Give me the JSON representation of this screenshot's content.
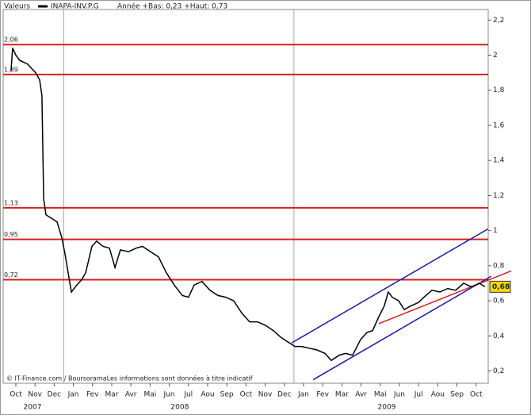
{
  "chart_data": {
    "type": "line",
    "header": "Valeurs",
    "annotation": "Année +Bas: 0,23 +Haut: 0,73",
    "source": "© IT-Finance.com / BoursoramaLes informations sont données à titre indicatif",
    "xlim": [
      -0.66,
      24.63
    ],
    "ylim": [
      0.13,
      2.26
    ],
    "yticks": [
      {
        "value": 0.2,
        "label": "0,2"
      },
      {
        "value": 0.4,
        "label": "0,4"
      },
      {
        "value": 0.6,
        "label": "0,6"
      },
      {
        "value": 0.8,
        "label": "0,8"
      },
      1,
      {
        "value": 1.2,
        "label": "1,2"
      },
      {
        "value": 1.4,
        "label": "1,4"
      },
      {
        "value": 1.6,
        "label": "1,6"
      },
      {
        "value": 1.8,
        "label": "1,8"
      },
      2,
      {
        "value": 2.2,
        "label": "2,2"
      }
    ],
    "xticks": [
      {
        "value": 0,
        "label": "Oct"
      },
      {
        "value": 1,
        "label": "Nov"
      },
      {
        "value": 2,
        "label": "Dec"
      },
      {
        "value": 3,
        "label": "Jan"
      },
      {
        "value": 4,
        "label": "Fev"
      },
      {
        "value": 5,
        "label": "Mar"
      },
      {
        "value": 6,
        "label": "Avr"
      },
      {
        "value": 7,
        "label": "Mai"
      },
      {
        "value": 8,
        "label": "Jun"
      },
      {
        "value": 9,
        "label": "Jul"
      },
      {
        "value": 10,
        "label": "Aou"
      },
      {
        "value": 11,
        "label": "Sep"
      },
      {
        "value": 12,
        "label": "Oct"
      },
      {
        "value": 13,
        "label": "Nov"
      },
      {
        "value": 14,
        "label": "Dec"
      },
      {
        "value": 15,
        "label": "Jan"
      },
      {
        "value": 16,
        "label": "Fev"
      },
      {
        "value": 17,
        "label": "Mar"
      },
      {
        "value": 18,
        "label": "Avr"
      },
      {
        "value": 19,
        "label": "Mai"
      },
      {
        "value": 20,
        "label": "Jun"
      },
      {
        "value": 21,
        "label": "Jul"
      },
      {
        "value": 22,
        "label": "Aou"
      },
      {
        "value": 23,
        "label": "Sep"
      },
      {
        "value": 24,
        "label": "Oct"
      }
    ],
    "years": [
      {
        "value": 0.87,
        "label": "2007"
      },
      {
        "value": 8.55,
        "label": "2008"
      },
      {
        "value": 19.34,
        "label": "2009"
      }
    ],
    "xgrid": [
      2.5,
      14.5
    ],
    "levels": [
      {
        "value": 2.06,
        "label": "2,06"
      },
      {
        "value": 1.89,
        "label": "1,89"
      },
      {
        "value": 1.13,
        "label": "1,13"
      },
      {
        "value": 0.95,
        "label": "0,95"
      },
      {
        "value": 0.72,
        "label": "0,72"
      }
    ],
    "level_color": "#d42020",
    "trendlines": [
      {
        "color": "#1a1aa8",
        "x": [
          14.38,
          24.63
        ],
        "values": [
          0.36,
          1.01
        ]
      },
      {
        "color": "#1a1aa8",
        "x": [
          15.5,
          24.79
        ],
        "values": [
          0.15,
          0.74
        ]
      },
      {
        "color": "#d42020",
        "x": [
          18.93,
          25.83
        ],
        "values": [
          0.47,
          0.77
        ]
      }
    ],
    "series": [
      {
        "name": "INAPA-INV.P.G",
        "color": "#000000",
        "x": [
          -0.25,
          -0.17,
          0.0,
          0.2,
          0.6,
          1.03,
          1.24,
          1.36,
          1.45,
          1.57,
          1.86,
          2.15,
          2.4,
          2.56,
          2.73,
          2.9,
          3.18,
          3.43,
          3.64,
          3.97,
          4.21,
          4.55,
          4.88,
          5.17,
          5.45,
          5.87,
          6.28,
          6.6,
          7.02,
          7.44,
          7.85,
          8.26,
          8.68,
          9.0,
          9.3,
          9.71,
          10.12,
          10.54,
          10.95,
          11.36,
          11.78,
          12.19,
          12.6,
          13.02,
          13.43,
          13.84,
          14.26,
          14.55,
          14.88,
          15.29,
          15.7,
          16.12,
          16.45,
          16.86,
          17.19,
          17.56,
          17.98,
          18.31,
          18.6,
          18.93,
          19.21,
          19.42,
          19.63,
          19.96,
          20.25,
          20.58,
          20.99,
          21.28,
          21.69,
          22.11,
          22.52,
          22.93,
          23.35,
          23.76,
          24.17,
          24.46
        ],
        "values": [
          1.91,
          2.04,
          2.0,
          1.97,
          1.95,
          1.9,
          1.86,
          1.77,
          1.18,
          1.09,
          1.07,
          1.05,
          0.96,
          0.87,
          0.76,
          0.65,
          0.69,
          0.72,
          0.76,
          0.91,
          0.94,
          0.91,
          0.9,
          0.79,
          0.89,
          0.88,
          0.9,
          0.91,
          0.88,
          0.85,
          0.76,
          0.69,
          0.63,
          0.62,
          0.69,
          0.71,
          0.66,
          0.63,
          0.62,
          0.6,
          0.53,
          0.48,
          0.48,
          0.46,
          0.43,
          0.39,
          0.36,
          0.34,
          0.34,
          0.33,
          0.32,
          0.3,
          0.26,
          0.29,
          0.3,
          0.29,
          0.38,
          0.42,
          0.43,
          0.51,
          0.57,
          0.65,
          0.62,
          0.6,
          0.55,
          0.57,
          0.59,
          0.62,
          0.66,
          0.65,
          0.67,
          0.66,
          0.7,
          0.68,
          0.7,
          0.68
        ]
      }
    ],
    "last": {
      "value": 0.68,
      "label": "0,68"
    },
    "last_color": "#f5d800"
  }
}
